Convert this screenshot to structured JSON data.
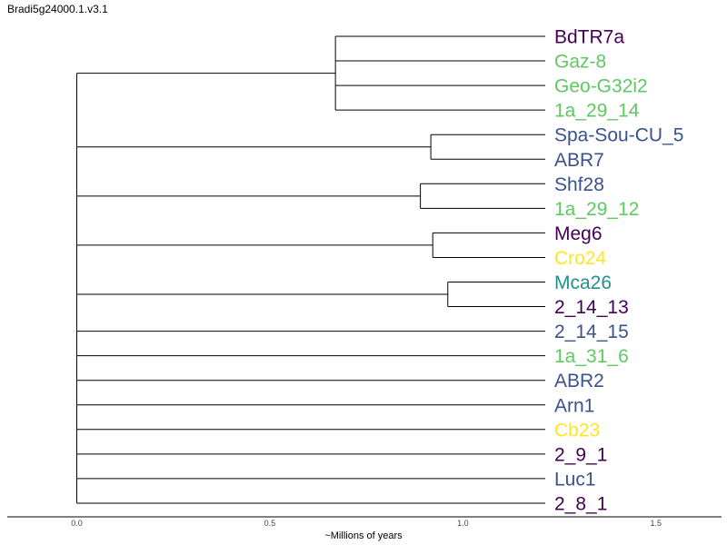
{
  "title": "Bradi5g24000.1.v3.1",
  "axis": {
    "label": "~Millions of years",
    "ticks": [
      "0.0",
      "0.5",
      "1.0",
      "1.5"
    ],
    "tick_values": [
      0,
      0.5,
      1.0,
      1.5
    ],
    "range": [
      -0.18,
      1.67
    ]
  },
  "colors": {
    "dark_purple": "#440154",
    "blue": "#3b528b",
    "teal": "#21918c",
    "green": "#5ec962",
    "yellow": "#fde725"
  },
  "leaf_x": 1.24,
  "leaves": [
    {
      "name": "BdTR7a",
      "color": "#440154"
    },
    {
      "name": "Gaz-8",
      "color": "#5ec962"
    },
    {
      "name": "Geo-G32i2",
      "color": "#5ec962"
    },
    {
      "name": "1a_29_14",
      "color": "#5ec962"
    },
    {
      "name": "Spa-Sou-CU_5",
      "color": "#3b528b"
    },
    {
      "name": "ABR7",
      "color": "#3b528b"
    },
    {
      "name": "Shf28",
      "color": "#3b528b"
    },
    {
      "name": "1a_29_12",
      "color": "#5ec962"
    },
    {
      "name": "Meg6",
      "color": "#440154"
    },
    {
      "name": "Cro24",
      "color": "#fde725"
    },
    {
      "name": "Mca26",
      "color": "#21918c"
    },
    {
      "name": "2_14_13",
      "color": "#440154"
    },
    {
      "name": "2_14_15",
      "color": "#3b528b"
    },
    {
      "name": "1a_31_6",
      "color": "#5ec962"
    },
    {
      "name": "ABR2",
      "color": "#3b528b"
    },
    {
      "name": "Arn1",
      "color": "#3b528b"
    },
    {
      "name": "Cb23",
      "color": "#fde725"
    },
    {
      "name": "2_9_1",
      "color": "#440154"
    },
    {
      "name": "Luc1",
      "color": "#3b528b"
    },
    {
      "name": "2_8_1",
      "color": "#440154"
    }
  ],
  "clades": [
    {
      "node_x": 0.67,
      "leaf_range": [
        0,
        3
      ]
    },
    {
      "node_x": 0.917,
      "leaf_range": [
        4,
        5
      ]
    },
    {
      "node_x": 0.89,
      "leaf_range": [
        6,
        7
      ]
    },
    {
      "node_x": 0.922,
      "leaf_range": [
        8,
        9
      ]
    },
    {
      "node_x": 0.961,
      "leaf_range": [
        10,
        11
      ]
    }
  ],
  "root_x": 0.0
}
